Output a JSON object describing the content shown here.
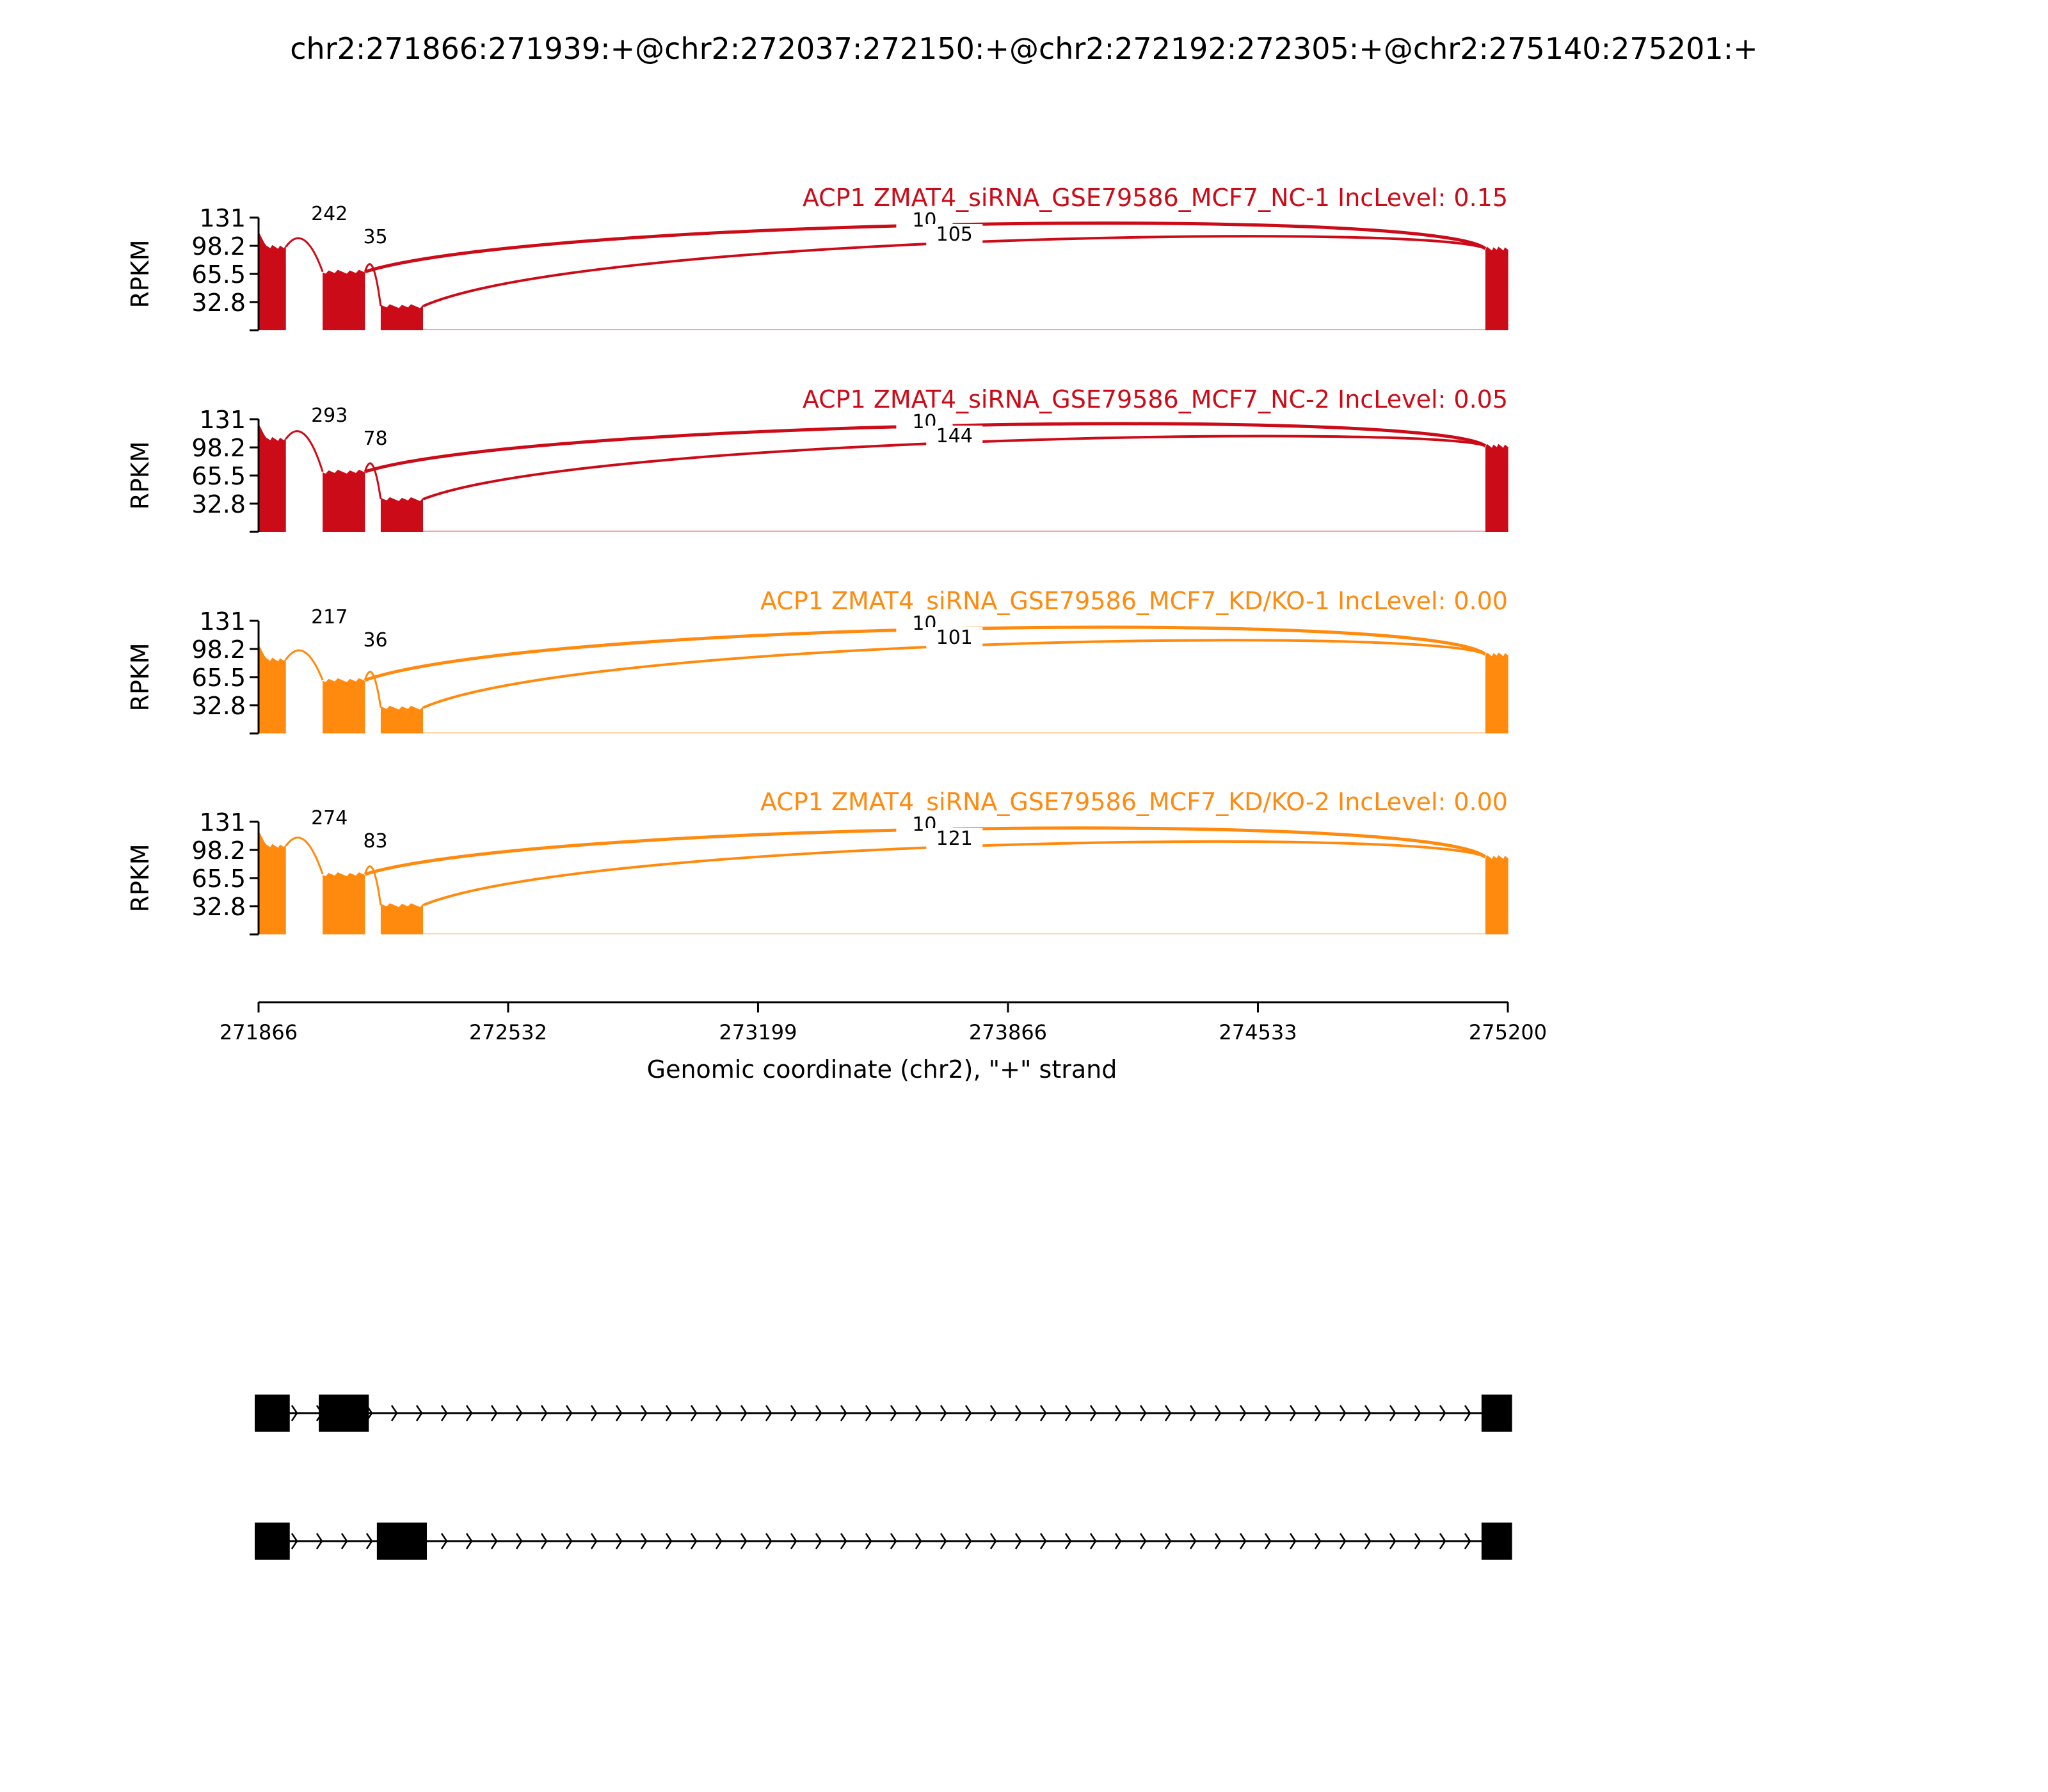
{
  "figure": {
    "title": "chr2:271866:271939:+@chr2:272037:272150:+@chr2:272192:272305:+@chr2:275140:275201:+",
    "xlabel": "Genomic coordinate (chr2), \"+\" strand"
  },
  "colors": {
    "nc": "#cc0b18",
    "kd": "#ff8a0e",
    "axis": "#000000",
    "gene": "#000000"
  },
  "chart_data": {
    "type": "area",
    "xlim": [
      271866,
      275200
    ],
    "xticks": [
      "271866",
      "272532",
      "273199",
      "273866",
      "274533",
      "275200"
    ],
    "ylim": [
      0,
      131
    ],
    "ylabel": "RPKM",
    "yticks": [
      "131",
      "98.2",
      "65.5",
      "32.8"
    ],
    "exons": [
      [
        271866,
        271939
      ],
      [
        272037,
        272150
      ],
      [
        272192,
        272305
      ],
      [
        275140,
        275201
      ]
    ],
    "series": [
      {
        "name": "ACP1 ZMAT4_siRNA_GSE79586_MCF7_NC-1 IncLevel: 0.15",
        "color_key": "nc",
        "coverage": [
          97,
          85,
          110
        ],
        "coverage_levels": [
          [
            271866,
            271939,
            97
          ],
          [
            272037,
            272150,
            68
          ],
          [
            272192,
            272305,
            28
          ],
          [
            275140,
            275201,
            95
          ]
        ],
        "junctions": [
          {
            "from": 272150,
            "to": 275140,
            "count": "10",
            "label_side": "top"
          },
          {
            "from": 272305,
            "to": 275140,
            "count": "105",
            "label_side": "bottom"
          },
          {
            "from": 271939,
            "to": 272037,
            "count": "242",
            "label_side": "top"
          },
          {
            "from": 272150,
            "to": 272192,
            "count": "35",
            "label_side": "top"
          }
        ]
      },
      {
        "name": "ACP1 ZMAT4_siRNA_GSE79586_MCF7_NC-2 IncLevel: 0.05",
        "color_key": "nc",
        "coverage_levels": [
          [
            271866,
            271939,
            108
          ],
          [
            272037,
            272150,
            70
          ],
          [
            272192,
            272305,
            38
          ],
          [
            275140,
            275201,
            100
          ]
        ],
        "junctions": [
          {
            "from": 272150,
            "to": 275140,
            "count": "10",
            "label_side": "top"
          },
          {
            "from": 272305,
            "to": 275140,
            "count": "144",
            "label_side": "bottom"
          },
          {
            "from": 271939,
            "to": 272037,
            "count": "293",
            "label_side": "top"
          },
          {
            "from": 272150,
            "to": 272192,
            "count": "78",
            "label_side": "top"
          }
        ]
      },
      {
        "name": "ACP1 ZMAT4_siRNA_GSE79586_MCF7_KD/KO-1 IncLevel: 0.00",
        "color_key": "kd",
        "coverage_levels": [
          [
            271866,
            271939,
            86
          ],
          [
            272037,
            272150,
            62
          ],
          [
            272192,
            272305,
            30
          ],
          [
            275140,
            275201,
            92
          ]
        ],
        "junctions": [
          {
            "from": 272150,
            "to": 275140,
            "count": "10",
            "label_side": "top"
          },
          {
            "from": 272305,
            "to": 275140,
            "count": "101",
            "label_side": "bottom"
          },
          {
            "from": 271939,
            "to": 272037,
            "count": "217",
            "label_side": "top"
          },
          {
            "from": 272150,
            "to": 272192,
            "count": "36",
            "label_side": "top"
          }
        ]
      },
      {
        "name": "ACP1 ZMAT4_siRNA_GSE79586_MCF7_KD/KO-2 IncLevel: 0.00",
        "color_key": "kd",
        "coverage_levels": [
          [
            271866,
            271939,
            103
          ],
          [
            272037,
            272150,
            70
          ],
          [
            272192,
            272305,
            34
          ],
          [
            275140,
            275201,
            90
          ]
        ],
        "junctions": [
          {
            "from": 272150,
            "to": 275140,
            "count": "10",
            "label_side": "top"
          },
          {
            "from": 272305,
            "to": 275140,
            "count": "121",
            "label_side": "bottom"
          },
          {
            "from": 271939,
            "to": 272037,
            "count": "274",
            "label_side": "top"
          },
          {
            "from": 272150,
            "to": 272192,
            "count": "83",
            "label_side": "top"
          }
        ]
      }
    ],
    "isoforms": [
      {
        "exons": [
          [
            271866,
            271939
          ],
          [
            272037,
            272150
          ],
          [
            275140,
            275201
          ]
        ]
      },
      {
        "exons": [
          [
            271866,
            271939
          ],
          [
            272192,
            272305
          ],
          [
            275140,
            275201
          ]
        ]
      }
    ]
  }
}
